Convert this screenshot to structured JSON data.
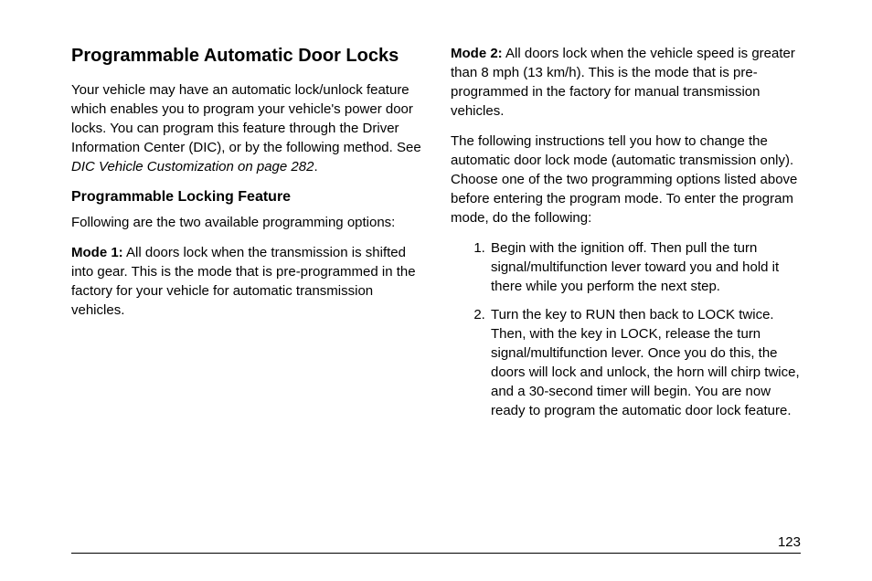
{
  "heading": "Programmable Automatic Door Locks",
  "intro_part1": "Your vehicle may have an automatic lock/unlock feature which enables you to program your vehicle's power door locks. You can program this feature through the Driver Information Center (DIC), or by the following method. See ",
  "intro_italic": "DIC Vehicle Customization on page 282",
  "intro_part2": ".",
  "subheading": "Programmable Locking Feature",
  "options_intro": "Following are the two available programming options:",
  "mode1_label": "Mode 1:",
  "mode1_text": "  All doors lock when the transmission is shifted into gear. This is the mode that is pre-programmed in the factory for your vehicle for automatic transmission vehicles.",
  "mode2_label": "Mode 2:",
  "mode2_text": "  All doors lock when the vehicle speed is greater than 8 mph (13 km/h). This is the mode that is pre-programmed in the factory for manual transmission vehicles.",
  "instructions_intro": "The following instructions tell you how to change the automatic door lock mode (automatic transmission only). Choose one of the two programming options listed above before entering the program mode. To enter the program mode, do the following:",
  "step1": "Begin with the ignition off. Then pull the turn signal/multifunction lever toward you and hold it there while you perform the next step.",
  "step2": "Turn the key to RUN then back to LOCK twice. Then, with the key in LOCK, release the turn signal/multifunction lever. Once you do this, the doors will lock and unlock, the horn will chirp twice, and a 30-second timer will begin. You are now ready to program the automatic door lock feature.",
  "page_number": "123"
}
